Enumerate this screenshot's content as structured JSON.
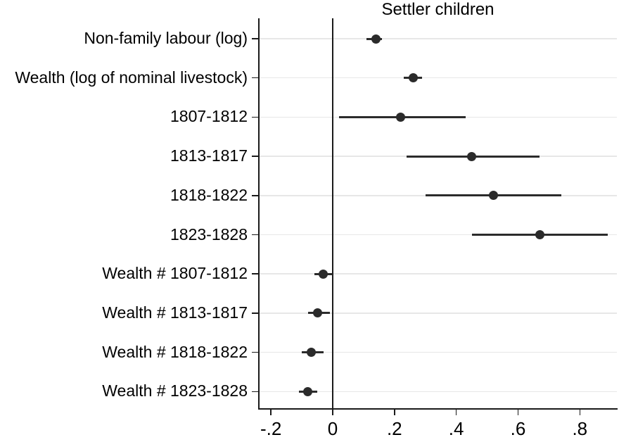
{
  "chart_data": {
    "type": "scatter",
    "subtype": "coefficient-dot-whisker-plot",
    "title": "Settler children",
    "xlabel": "",
    "ylabel": "",
    "legend": "none",
    "grid": "horizontal gridline per category",
    "reference_line_x": 0,
    "xlim": [
      -0.239,
      0.92
    ],
    "x_ticks": [
      {
        "value": -0.2,
        "label": "-.2"
      },
      {
        "value": 0,
        "label": "0"
      },
      {
        "value": 0.2,
        "label": ".2"
      },
      {
        "value": 0.4,
        "label": ".4"
      },
      {
        "value": 0.6,
        "label": ".6"
      },
      {
        "value": 0.8,
        "label": ".8"
      }
    ],
    "points": [
      {
        "label": "Non-family labour (log)",
        "estimate": 0.14,
        "ci_low": 0.11,
        "ci_high": 0.16
      },
      {
        "label": "Wealth (log of nominal livestock)",
        "estimate": 0.26,
        "ci_low": 0.23,
        "ci_high": 0.29
      },
      {
        "label": "1807-1812",
        "estimate": 0.22,
        "ci_low": 0.02,
        "ci_high": 0.43
      },
      {
        "label": "1813-1817",
        "estimate": 0.45,
        "ci_low": 0.24,
        "ci_high": 0.67
      },
      {
        "label": "1818-1822",
        "estimate": 0.52,
        "ci_low": 0.3,
        "ci_high": 0.74
      },
      {
        "label": "1823-1828",
        "estimate": 0.67,
        "ci_low": 0.45,
        "ci_high": 0.89
      },
      {
        "label": "Wealth # 1807-1812",
        "estimate": -0.03,
        "ci_low": -0.06,
        "ci_high": 0.0
      },
      {
        "label": "Wealth # 1813-1817",
        "estimate": -0.05,
        "ci_low": -0.08,
        "ci_high": -0.01
      },
      {
        "label": "Wealth # 1818-1822",
        "estimate": -0.07,
        "ci_low": -0.1,
        "ci_high": -0.03
      },
      {
        "label": "Wealth # 1823-1828",
        "estimate": -0.08,
        "ci_low": -0.11,
        "ci_high": -0.05
      }
    ],
    "colors": {
      "marker": "#2b2b2b",
      "ci_line": "#2b2b2b",
      "reference_line": "#1a1a1a",
      "axis": "#1a1a1a",
      "gridline": "#e7e7e7",
      "text": "#000000",
      "background": "#ffffff"
    }
  }
}
